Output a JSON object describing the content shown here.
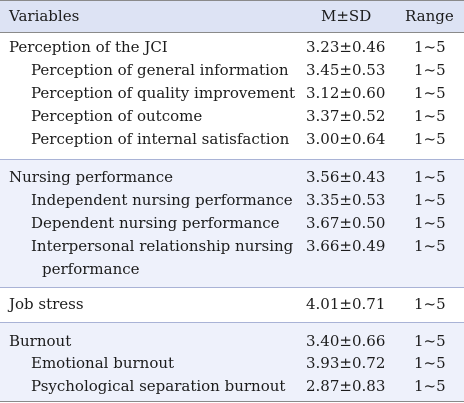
{
  "header": {
    "variables": "Variables",
    "msd": "M±SD",
    "range": "Range"
  },
  "groups": [
    {
      "rows": [
        {
          "label": "Perception of the JCI",
          "msd": "3.23±0.46",
          "range": "1~5"
        },
        {
          "label": "Perception of general information",
          "msd": "3.45±0.53",
          "range": "1~5"
        },
        {
          "label": "Perception of quality improvement",
          "msd": "3.12±0.60",
          "range": "1~5"
        },
        {
          "label": "Perception of outcome",
          "msd": "3.37±0.52",
          "range": "1~5"
        },
        {
          "label": "Perception of internal satisfaction",
          "msd": "3.00±0.64",
          "range": "1~5"
        }
      ]
    },
    {
      "rows": [
        {
          "label": "Nursing performance",
          "msd": "3.56±0.43",
          "range": "1~5"
        },
        {
          "label": "Independent nursing performance",
          "msd": "3.35±0.53",
          "range": "1~5"
        },
        {
          "label": "Dependent nursing performance",
          "msd": "3.67±0.50",
          "range": "1~5"
        },
        {
          "label": "Interpersonal relationship nursing",
          "label_cont": "performance",
          "msd": "3.66±0.49",
          "range": "1~5"
        }
      ]
    },
    {
      "rows": [
        {
          "label": "Job stress",
          "msd": "4.01±0.71",
          "range": "1~5"
        }
      ]
    },
    {
      "rows": [
        {
          "label": "Burnout",
          "msd": "3.40±0.66",
          "range": "1~5"
        },
        {
          "label": "Emotional burnout",
          "msd": "3.93±0.72",
          "range": "1~5"
        },
        {
          "label": "Psychological separation burnout",
          "msd": "2.87±0.83",
          "range": "1~5"
        }
      ]
    }
  ]
}
